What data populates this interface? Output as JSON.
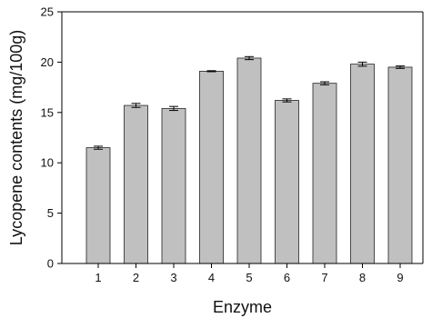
{
  "chart_data": {
    "type": "bar",
    "title": "",
    "xlabel": "Enzyme",
    "ylabel": "Lycopene contents (mg/100g)",
    "categories": [
      "1",
      "2",
      "3",
      "4",
      "5",
      "6",
      "7",
      "8",
      "9"
    ],
    "values": [
      11.5,
      15.7,
      15.4,
      19.1,
      20.4,
      16.2,
      17.9,
      19.8,
      19.5
    ],
    "error": [
      0.15,
      0.2,
      0.2,
      0.05,
      0.15,
      0.15,
      0.15,
      0.2,
      0.12
    ],
    "ylim": [
      0,
      25
    ],
    "yticks": [
      0,
      5,
      10,
      15,
      20,
      25
    ],
    "grid": false,
    "legend": "none",
    "bar_color": "#c0c0c0",
    "bar_edge_color": "#222222",
    "axis_color": "#000000"
  }
}
